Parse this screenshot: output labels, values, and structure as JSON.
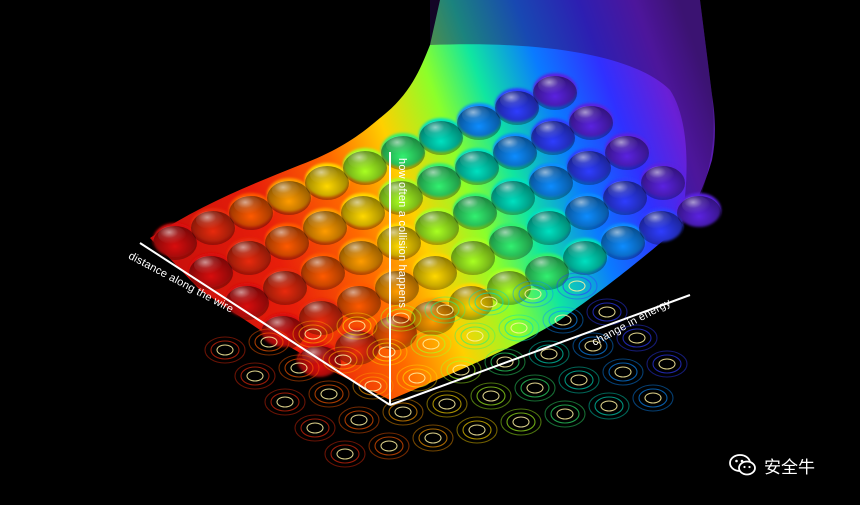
{
  "axes": {
    "distance_label": "distance along the wire",
    "collision_label": "how often a collision happens",
    "energy_label": "change in energy"
  },
  "watermark": {
    "text": "安全牛",
    "icon": "wechat-icon"
  },
  "colors": {
    "background": "#000000",
    "surface_gradient": [
      "#d01010",
      "#ff5a00",
      "#ffd400",
      "#7dff2a",
      "#00e6b0",
      "#0a7bff",
      "#2a32ff",
      "#6a1fd6",
      "#4a1a8a"
    ],
    "axis": "#ffffff"
  }
}
